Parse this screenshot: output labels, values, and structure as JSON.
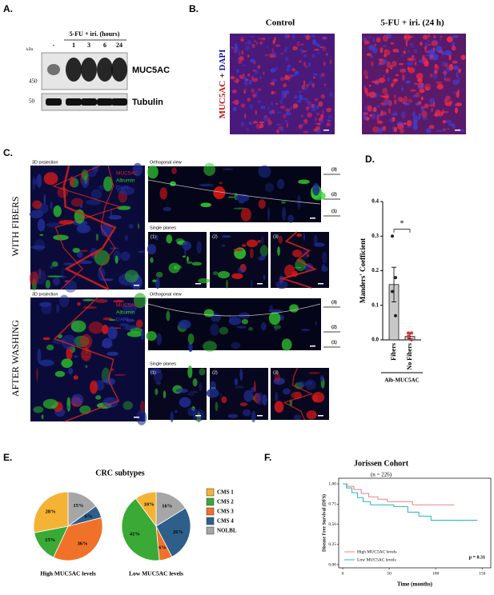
{
  "panel_labels": [
    "A.",
    "B.",
    "C.",
    "D.",
    "E.",
    "F."
  ],
  "blot": {
    "header": "5-FU + iri. (hours)",
    "lanes": [
      "-",
      "1",
      "3",
      "6",
      "24"
    ],
    "unit": "kDa",
    "markers": [
      "450",
      "50"
    ],
    "proteins": [
      "MUC5AC",
      "Tubulin"
    ]
  },
  "imaging": {
    "columns": [
      "Control",
      "5-FU + iri. (24 h)"
    ],
    "stain": [
      "MUC5AC",
      "+",
      "DAPI"
    ]
  },
  "confocal": {
    "rows": [
      "WITH FIBERS",
      "AFTER WASHING"
    ],
    "projection": "3D projection",
    "channels": [
      "MUC5AC",
      "Albumin",
      "DAPI"
    ],
    "orthogonal": "Orthogonal view",
    "planes_title": "Single planes",
    "planes": [
      "(1)",
      "(2)",
      "(3)"
    ]
  },
  "chart_data": [
    {
      "type": "bar",
      "ylabel": "Manders' Coefficient",
      "categories": [
        "Fibers",
        "No Fibers"
      ],
      "values": [
        0.16,
        0.01
      ],
      "errors": [
        0.05,
        0.007
      ],
      "points": [
        [
          0.3,
          0.18,
          0.14,
          0.07
        ],
        [
          0.02,
          0.02,
          0.01,
          0.0
        ]
      ],
      "annotation": "*",
      "group_label": "Alb-MUC5AC",
      "color": "#c8c8c8",
      "ylim": [
        0,
        0.4
      ],
      "yticks": [
        {
          "value": 0,
          "label": "0.0"
        },
        0.1,
        0.2,
        0.3,
        0.4
      ]
    },
    {
      "type": "pie",
      "title": "CRC subtypes",
      "labels": [
        "CMS 1",
        "CMS 2",
        "CMS 3",
        "CMS 4",
        "NOLBL"
      ],
      "colors": [
        "#f5b335",
        "#3aa935",
        "#f07228",
        "#2e5f8a",
        "#a6a6a6"
      ],
      "pies": [
        {
          "name": "High MUC5AC levels",
          "values": [
            28,
            15,
            36,
            6,
            15
          ],
          "value_labels": [
            "28%",
            "15%",
            "36%",
            "6%",
            "15%"
          ]
        },
        {
          "name": "Low MUC5AC levels",
          "values": [
            10,
            41,
            6,
            26,
            16
          ],
          "value_labels": [
            "10%",
            "41%",
            "6%",
            "26%",
            "16%"
          ]
        }
      ]
    },
    {
      "type": "line",
      "title": "Jorissen Cohort",
      "subtitle": "(n = 226)",
      "xlabel": "Time (months)",
      "ylabel": "Disease Free Survival (DFS)",
      "annotation": "p = 0.31",
      "series": [
        {
          "name": "High MUC5AC levels",
          "color": "#f08080",
          "x": [
            0,
            5,
            5,
            12,
            12,
            20,
            20,
            28,
            28,
            38,
            38,
            48,
            48,
            75,
            75,
            120
          ],
          "values": [
            1,
            1,
            0.97,
            0.97,
            0.93,
            0.93,
            0.88,
            0.88,
            0.84,
            0.84,
            0.81,
            0.81,
            0.78,
            0.78,
            0.74,
            0.74
          ]
        },
        {
          "name": "Low MUC5AC levels",
          "color": "#1fb5c9",
          "x": [
            0,
            4,
            4,
            10,
            10,
            16,
            16,
            22,
            22,
            30,
            30,
            55,
            55,
            70,
            70,
            82,
            82,
            95,
            95,
            145
          ],
          "values": [
            1,
            1,
            0.95,
            0.95,
            0.89,
            0.89,
            0.83,
            0.83,
            0.78,
            0.78,
            0.74,
            0.74,
            0.72,
            0.72,
            0.65,
            0.65,
            0.6,
            0.6,
            0.55,
            0.55
          ]
        }
      ],
      "xlim": [
        0,
        155
      ],
      "ylim": [
        0,
        1.05
      ],
      "xticks": [
        0,
        50,
        100,
        150
      ],
      "yticks": [
        {
          "value": 0,
          "label": "0.00"
        },
        {
          "value": 0.25,
          "label": "0.25"
        },
        {
          "value": 0.5,
          "label": "0.50"
        },
        {
          "value": 0.75,
          "label": "0.75"
        },
        {
          "value": 1,
          "label": "1.00"
        }
      ]
    }
  ]
}
